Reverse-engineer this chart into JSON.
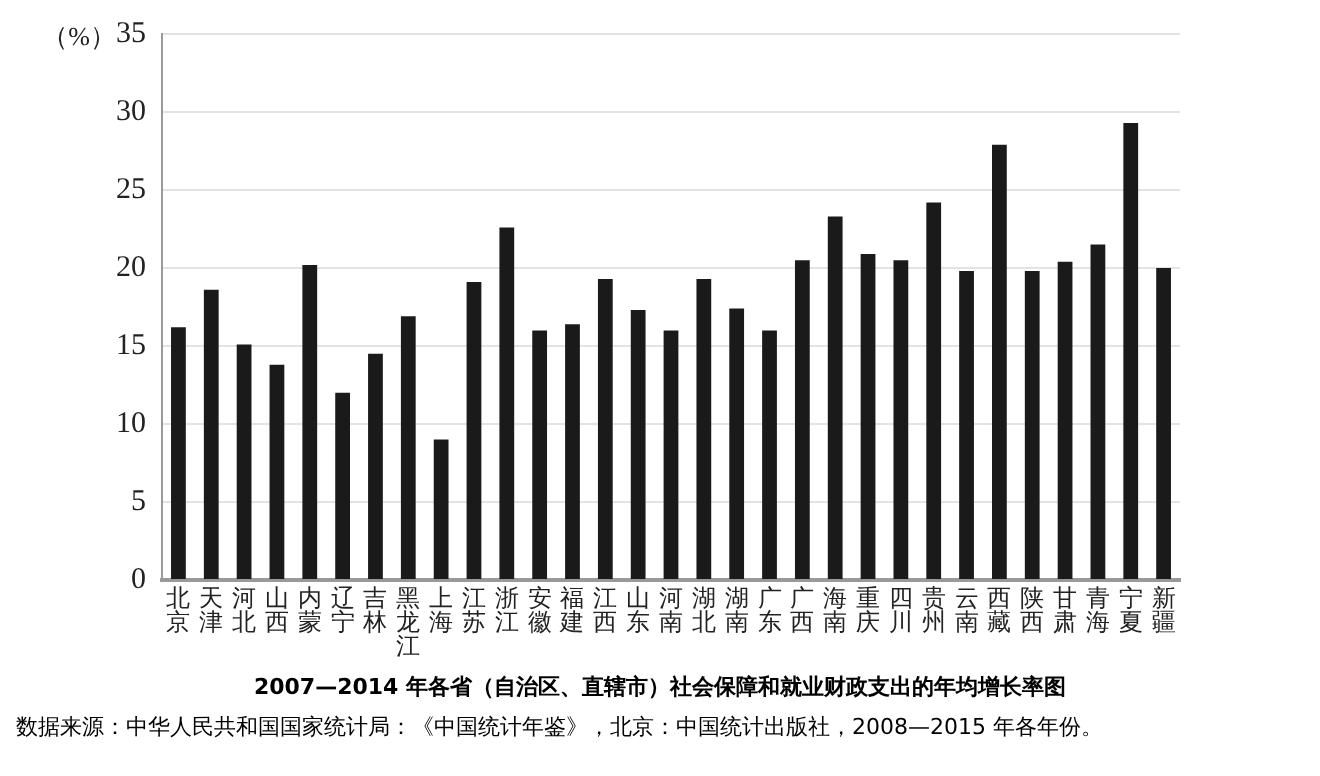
{
  "chart_data": {
    "type": "bar",
    "title": "2007—2014 年各省（自治区、直辖市）社会保障和就业财政支出的年均增长率图",
    "ylabel": "（%）",
    "categories": [
      "北京",
      "天津",
      "河北",
      "山西",
      "内蒙",
      "辽宁",
      "吉林",
      "黑龙江",
      "上海",
      "江苏",
      "浙江",
      "安徽",
      "福建",
      "江西",
      "山东",
      "河南",
      "湖北",
      "湖南",
      "广东",
      "广西",
      "海南",
      "重庆",
      "四川",
      "贵州",
      "云南",
      "西藏",
      "陕西",
      "甘肃",
      "青海",
      "宁夏",
      "新疆"
    ],
    "values": [
      16.2,
      18.6,
      15.1,
      13.8,
      20.2,
      12.0,
      14.5,
      16.9,
      9.0,
      19.1,
      22.6,
      16.0,
      16.4,
      19.3,
      17.3,
      16.0,
      19.3,
      17.4,
      16.0,
      20.5,
      23.3,
      20.9,
      20.5,
      24.2,
      19.8,
      27.9,
      19.8,
      20.4,
      21.5,
      29.3,
      20.0
    ],
    "color": "#1a1a1a",
    "ylim": [
      0,
      35
    ],
    "yticks": [
      0,
      5,
      10,
      15,
      20,
      25,
      30,
      35
    ],
    "grid": "y",
    "legend": false,
    "annotations": [
      "数据来源：中华人民共和国国家统计局：《中国统计年鉴》，北京：中国统计出版社，2008—2015 年各年份。"
    ]
  }
}
